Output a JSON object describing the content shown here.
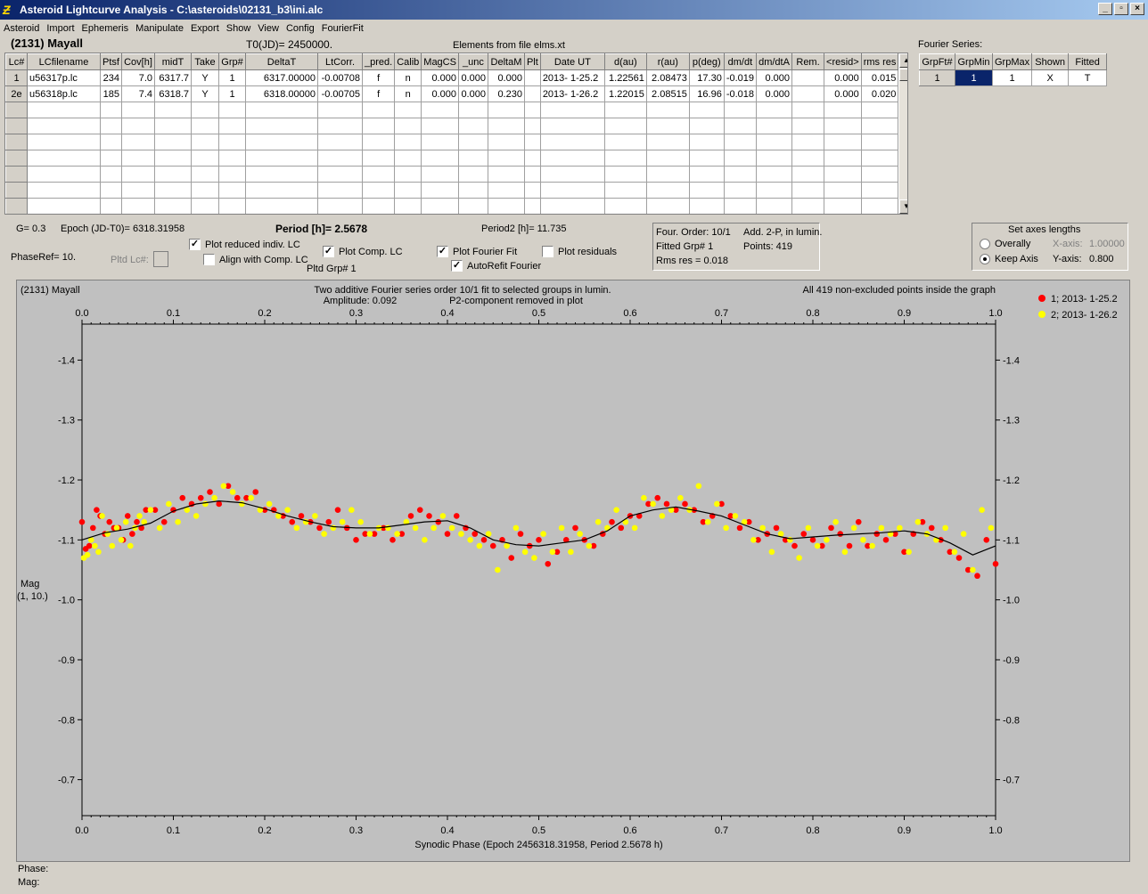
{
  "window": {
    "title": "Asteroid Lightcurve Analysis - C:\\asteroids\\02131_b3\\ini.alc",
    "app_icon": "lightcurve-app-icon",
    "minimize": "_",
    "maximize": "▫",
    "close": "×"
  },
  "menu": [
    "Asteroid",
    "Import",
    "Ephemeris",
    "Manipulate",
    "Export",
    "Show",
    "View",
    "Config",
    "FourierFit"
  ],
  "header": {
    "asteroid": "(2131) Mayall",
    "t0": "T0(JD)= 2450000.",
    "elements": "Elements from file elms.xt",
    "fourier_label": "Fourier Series:"
  },
  "lc_table": {
    "columns": [
      "Lc#",
      "LCfilename",
      "Ptsf",
      "Cov[h]",
      "midT",
      "Take",
      "Grp#",
      "DeltaT",
      "LtCorr.",
      "_pred.",
      "Calib",
      "MagCS",
      "_unc",
      "DeltaM",
      "Plt",
      "Date UT",
      "d(au)",
      "r(au)",
      "p(deg)",
      "dm/dt",
      "dm/dtA",
      "Rem.",
      "<resid>",
      "rms res"
    ],
    "rows": [
      [
        "1",
        "u56317p.lc",
        "234",
        "7.0",
        "6317.7",
        "Y",
        "1",
        "6317.00000",
        "-0.00708",
        "f",
        "n",
        "0.000",
        "0.000",
        "0.000",
        "",
        "2013- 1-25.2",
        "1.22561",
        "2.08473",
        "17.30",
        "-0.019",
        "0.000",
        "",
        "0.000",
        "0.015"
      ],
      [
        "2e",
        "u56318p.lc",
        "185",
        "7.4",
        "6318.7",
        "Y",
        "1",
        "6318.00000",
        "-0.00705",
        "f",
        "n",
        "0.000",
        "0.000",
        "0.230",
        "",
        "2013- 1-26.2",
        "1.22015",
        "2.08515",
        "16.96",
        "-0.018",
        "0.000",
        "",
        "0.000",
        "0.020"
      ]
    ],
    "scroll_up": "▲",
    "scroll_down": "▼"
  },
  "fourier_table": {
    "columns": [
      "GrpFt#",
      "GrpMin",
      "GrpMax",
      "Shown",
      "Fitted"
    ],
    "row": [
      "1",
      "1",
      "1",
      "X",
      "T"
    ]
  },
  "controls": {
    "g": "G= 0.3",
    "epoch": "Epoch (JD-T0)= 6318.31958",
    "period": "Period [h]= 2.5678",
    "period2": "Period2 [h]= 11.735",
    "phaseref": "PhaseRef= 10.",
    "pltd_lc": "Pltd Lc#:",
    "pltd_grp": "Pltd Grp#  1",
    "plot_reduced": "Plot reduced indiv. LC",
    "align_comp": "Align with Comp. LC",
    "plot_comp": "Plot Comp. LC",
    "plot_fourier": "Plot Fourier Fit",
    "plot_residuals": "Plot residuals",
    "autorefit": "AutoRefit Fourier",
    "check_mark": "✓"
  },
  "fit_info": {
    "order": "Four. Order: 10/1",
    "add": "Add. 2-P, in lumin.",
    "fitted_grp": "Fitted Grp# 1",
    "points": "Points: 419",
    "rms": "Rms res    = 0.018"
  },
  "axes_box": {
    "title": "Set axes lengths",
    "overally": "Overally",
    "keep_axis": "Keep Axis",
    "xaxis_label": "X-axis:",
    "xaxis_value": "1.00000",
    "yaxis_label": "Y-axis:",
    "yaxis_value": "0.800"
  },
  "chart_data": {
    "type": "scatter",
    "title": "Two additive Fourier series order 10/1 fit to selected groups in lumin.",
    "subtitle_left": "Amplitude: 0.092",
    "subtitle_right": "P2-component removed in plot",
    "corner_left": "(2131) Mayall",
    "corner_right": "All 419 non-excluded points inside the graph",
    "xlabel": "Synodic Phase (Epoch 2456318.31958, Period 2.5678 h)",
    "ylabel": "Mag",
    "ylabel2": "(1, 10.)",
    "xlim": [
      0.0,
      1.0
    ],
    "ylim": [
      -1.46,
      -0.64
    ],
    "xticks": [
      "0.0",
      "0.1",
      "0.2",
      "0.3",
      "0.4",
      "0.5",
      "0.6",
      "0.7",
      "0.8",
      "0.9",
      "1.0"
    ],
    "yticks": [
      "-1.4",
      "-1.3",
      "-1.2",
      "-1.1",
      "-1.0",
      "-0.9",
      "-0.8",
      "-0.7"
    ],
    "ytick_values": [
      -1.4,
      -1.3,
      -1.2,
      -1.1,
      -1.0,
      -0.9,
      -0.8,
      -0.7
    ],
    "series": [
      {
        "name": "1; 2013- 1-25.2",
        "color": "#ff0000",
        "x": [
          0.0,
          0.004,
          0.008,
          0.012,
          0.016,
          0.02,
          0.025,
          0.03,
          0.035,
          0.04,
          0.045,
          0.05,
          0.055,
          0.06,
          0.065,
          0.07,
          0.08,
          0.09,
          0.1,
          0.11,
          0.12,
          0.13,
          0.14,
          0.15,
          0.16,
          0.17,
          0.18,
          0.19,
          0.2,
          0.21,
          0.22,
          0.23,
          0.24,
          0.25,
          0.26,
          0.27,
          0.28,
          0.29,
          0.3,
          0.31,
          0.32,
          0.33,
          0.34,
          0.35,
          0.36,
          0.37,
          0.38,
          0.39,
          0.4,
          0.41,
          0.42,
          0.43,
          0.44,
          0.45,
          0.46,
          0.47,
          0.48,
          0.49,
          0.5,
          0.51,
          0.52,
          0.53,
          0.54,
          0.55,
          0.56,
          0.57,
          0.58,
          0.59,
          0.6,
          0.61,
          0.62,
          0.63,
          0.64,
          0.65,
          0.66,
          0.67,
          0.68,
          0.69,
          0.7,
          0.71,
          0.72,
          0.73,
          0.74,
          0.75,
          0.76,
          0.77,
          0.78,
          0.79,
          0.8,
          0.81,
          0.82,
          0.83,
          0.84,
          0.85,
          0.86,
          0.87,
          0.88,
          0.89,
          0.9,
          0.91,
          0.92,
          0.93,
          0.94,
          0.95,
          0.96,
          0.97,
          0.98,
          0.99,
          1.0
        ],
        "y": [
          -1.13,
          -1.085,
          -1.09,
          -1.12,
          -1.15,
          -1.14,
          -1.11,
          -1.13,
          -1.12,
          -1.12,
          -1.1,
          -1.14,
          -1.11,
          -1.13,
          -1.12,
          -1.15,
          -1.15,
          -1.13,
          -1.15,
          -1.17,
          -1.16,
          -1.17,
          -1.18,
          -1.16,
          -1.19,
          -1.17,
          -1.17,
          -1.18,
          -1.15,
          -1.15,
          -1.14,
          -1.13,
          -1.14,
          -1.13,
          -1.12,
          -1.13,
          -1.15,
          -1.12,
          -1.1,
          -1.11,
          -1.11,
          -1.12,
          -1.1,
          -1.11,
          -1.14,
          -1.15,
          -1.14,
          -1.13,
          -1.11,
          -1.14,
          -1.12,
          -1.11,
          -1.1,
          -1.09,
          -1.1,
          -1.07,
          -1.11,
          -1.09,
          -1.1,
          -1.06,
          -1.08,
          -1.1,
          -1.12,
          -1.1,
          -1.09,
          -1.11,
          -1.13,
          -1.12,
          -1.14,
          -1.14,
          -1.16,
          -1.17,
          -1.16,
          -1.15,
          -1.16,
          -1.15,
          -1.13,
          -1.14,
          -1.16,
          -1.14,
          -1.12,
          -1.13,
          -1.1,
          -1.11,
          -1.12,
          -1.1,
          -1.09,
          -1.11,
          -1.1,
          -1.09,
          -1.12,
          -1.11,
          -1.09,
          -1.13,
          -1.09,
          -1.11,
          -1.1,
          -1.11,
          -1.08,
          -1.11,
          -1.13,
          -1.12,
          -1.1,
          -1.08,
          -1.07,
          -1.05,
          -1.04,
          -1.1,
          -1.06
        ]
      },
      {
        "name": "2; 2013- 1-26.2",
        "color": "#ffff00",
        "x": [
          0.002,
          0.006,
          0.01,
          0.014,
          0.018,
          0.022,
          0.028,
          0.033,
          0.038,
          0.043,
          0.048,
          0.053,
          0.058,
          0.063,
          0.068,
          0.075,
          0.085,
          0.095,
          0.105,
          0.115,
          0.125,
          0.135,
          0.145,
          0.155,
          0.165,
          0.175,
          0.185,
          0.195,
          0.205,
          0.215,
          0.225,
          0.235,
          0.245,
          0.255,
          0.265,
          0.275,
          0.285,
          0.295,
          0.305,
          0.315,
          0.325,
          0.335,
          0.345,
          0.355,
          0.365,
          0.375,
          0.385,
          0.395,
          0.405,
          0.415,
          0.425,
          0.435,
          0.445,
          0.455,
          0.465,
          0.475,
          0.485,
          0.495,
          0.505,
          0.515,
          0.525,
          0.535,
          0.545,
          0.555,
          0.565,
          0.575,
          0.585,
          0.595,
          0.605,
          0.615,
          0.625,
          0.635,
          0.645,
          0.655,
          0.665,
          0.675,
          0.685,
          0.695,
          0.705,
          0.715,
          0.725,
          0.735,
          0.745,
          0.755,
          0.765,
          0.775,
          0.785,
          0.795,
          0.805,
          0.815,
          0.825,
          0.835,
          0.845,
          0.855,
          0.865,
          0.875,
          0.885,
          0.895,
          0.905,
          0.915,
          0.925,
          0.935,
          0.945,
          0.955,
          0.965,
          0.975,
          0.985,
          0.995
        ],
        "y": [
          -1.07,
          -1.075,
          -1.1,
          -1.09,
          -1.08,
          -1.14,
          -1.11,
          -1.09,
          -1.12,
          -1.1,
          -1.13,
          -1.09,
          -1.12,
          -1.14,
          -1.13,
          -1.15,
          -1.12,
          -1.16,
          -1.13,
          -1.15,
          -1.14,
          -1.16,
          -1.17,
          -1.19,
          -1.18,
          -1.16,
          -1.17,
          -1.15,
          -1.16,
          -1.14,
          -1.15,
          -1.12,
          -1.13,
          -1.14,
          -1.11,
          -1.12,
          -1.13,
          -1.15,
          -1.13,
          -1.11,
          -1.12,
          -1.12,
          -1.11,
          -1.13,
          -1.12,
          -1.1,
          -1.12,
          -1.14,
          -1.12,
          -1.11,
          -1.1,
          -1.09,
          -1.11,
          -1.05,
          -1.09,
          -1.12,
          -1.08,
          -1.07,
          -1.11,
          -1.08,
          -1.12,
          -1.08,
          -1.11,
          -1.09,
          -1.13,
          -1.12,
          -1.15,
          -1.13,
          -1.12,
          -1.17,
          -1.16,
          -1.14,
          -1.15,
          -1.17,
          -1.15,
          -1.19,
          -1.13,
          -1.16,
          -1.12,
          -1.14,
          -1.13,
          -1.1,
          -1.12,
          -1.08,
          -1.11,
          -1.1,
          -1.07,
          -1.12,
          -1.09,
          -1.1,
          -1.13,
          -1.08,
          -1.12,
          -1.1,
          -1.09,
          -1.12,
          -1.11,
          -1.12,
          -1.08,
          -1.13,
          -1.11,
          -1.1,
          -1.12,
          -1.08,
          -1.11,
          -1.05,
          -1.15,
          -1.12
        ]
      }
    ],
    "fit_curve": {
      "x": [
        0.0,
        0.025,
        0.05,
        0.075,
        0.1,
        0.125,
        0.15,
        0.175,
        0.2,
        0.225,
        0.25,
        0.275,
        0.3,
        0.325,
        0.35,
        0.375,
        0.4,
        0.425,
        0.45,
        0.475,
        0.5,
        0.525,
        0.55,
        0.575,
        0.6,
        0.625,
        0.65,
        0.675,
        0.7,
        0.725,
        0.75,
        0.775,
        0.8,
        0.825,
        0.85,
        0.875,
        0.9,
        0.925,
        0.95,
        0.975,
        1.0
      ],
      "y": [
        -1.1,
        -1.112,
        -1.118,
        -1.128,
        -1.148,
        -1.16,
        -1.165,
        -1.162,
        -1.152,
        -1.14,
        -1.13,
        -1.122,
        -1.12,
        -1.12,
        -1.125,
        -1.13,
        -1.132,
        -1.12,
        -1.1,
        -1.092,
        -1.09,
        -1.095,
        -1.1,
        -1.115,
        -1.14,
        -1.15,
        -1.155,
        -1.148,
        -1.14,
        -1.125,
        -1.11,
        -1.102,
        -1.105,
        -1.108,
        -1.11,
        -1.112,
        -1.115,
        -1.11,
        -1.095,
        -1.075,
        -1.09
      ]
    }
  },
  "status": {
    "phase": "Phase:",
    "mag": "Mag:"
  }
}
